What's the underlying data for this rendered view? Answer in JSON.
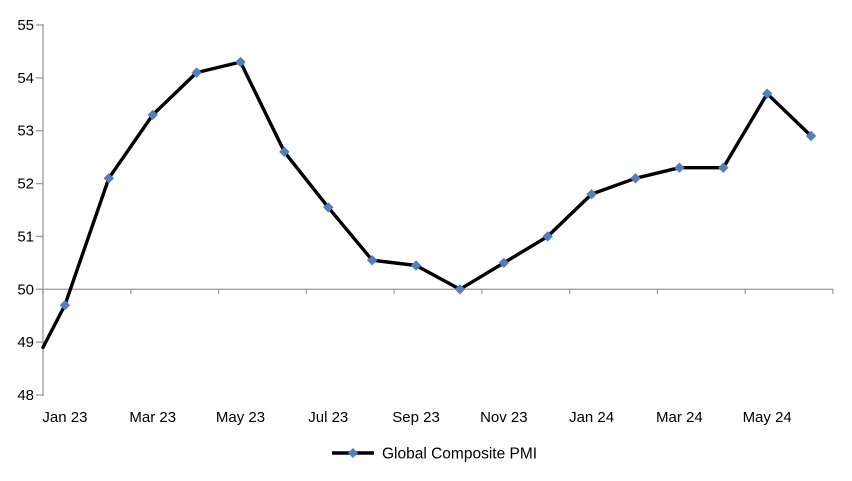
{
  "chart_data": {
    "type": "line",
    "title": "",
    "categories": [
      "Jan 23",
      "Feb 23",
      "Mar 23",
      "Apr 23",
      "May 23",
      "Jun 23",
      "Jul 23",
      "Aug 23",
      "Sep 23",
      "Oct 23",
      "Nov 23",
      "Dec 23",
      "Jan 24",
      "Feb 24",
      "Mar 24",
      "Apr 24",
      "May 24",
      "Jun 24"
    ],
    "series": [
      {
        "name": "Global Composite PMI",
        "values": [
          49.7,
          52.1,
          53.3,
          54.1,
          54.3,
          52.6,
          51.55,
          50.55,
          50.45,
          50.0,
          50.5,
          51.0,
          51.8,
          52.1,
          52.3,
          52.3,
          53.7,
          52.9
        ],
        "edge_start_value": 48.9,
        "line_color": "#000000",
        "line_width": 3.4,
        "marker": "diamond",
        "marker_color": "#4F81BD",
        "marker_size": 5.2
      }
    ],
    "x_tick_labels": [
      "Jan 23",
      "Mar 23",
      "May 23",
      "Jul 23",
      "Sep 23",
      "Nov 23",
      "Jan 24",
      "Mar 24",
      "May 24"
    ],
    "x_label_step": 2,
    "y_ticks": [
      48,
      49,
      50,
      51,
      52,
      53,
      54,
      55
    ],
    "ylim": [
      48,
      55
    ],
    "baseline": 50,
    "grid": "off",
    "axis_color": "#9a9a9a",
    "text_color": "#000000",
    "background_color": "#ffffff",
    "legend": {
      "label": "Global Composite PMI",
      "position": "bottom-center"
    }
  }
}
